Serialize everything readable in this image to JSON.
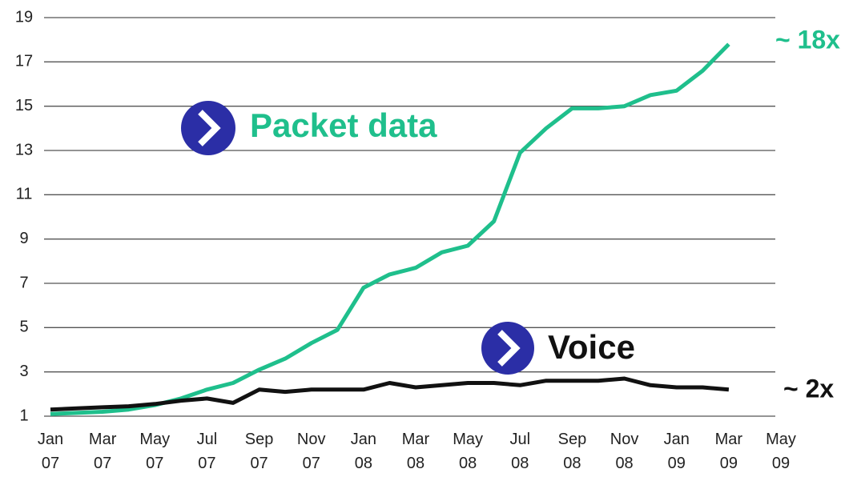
{
  "chart_data": {
    "type": "line",
    "x": [
      "2007-01",
      "2007-02",
      "2007-03",
      "2007-04",
      "2007-05",
      "2007-06",
      "2007-07",
      "2007-08",
      "2007-09",
      "2007-10",
      "2007-11",
      "2007-12",
      "2008-01",
      "2008-02",
      "2008-03",
      "2008-04",
      "2008-05",
      "2008-06",
      "2008-07",
      "2008-08",
      "2008-09",
      "2008-10",
      "2008-11",
      "2008-12",
      "2009-01",
      "2009-02",
      "2009-03"
    ],
    "series": [
      {
        "name": "Packet data",
        "color": "#1fbf8c",
        "values": [
          1.1,
          1.15,
          1.2,
          1.3,
          1.5,
          1.8,
          2.2,
          2.5,
          3.1,
          3.6,
          4.3,
          4.9,
          6.8,
          7.4,
          7.7,
          8.4,
          8.7,
          9.8,
          12.9,
          14.0,
          14.9,
          14.9,
          15.0,
          15.5,
          15.7,
          16.6,
          17.8
        ]
      },
      {
        "name": "Voice",
        "color": "#111111",
        "values": [
          1.3,
          1.35,
          1.4,
          1.45,
          1.55,
          1.7,
          1.8,
          1.6,
          2.2,
          2.1,
          2.2,
          2.2,
          2.2,
          2.5,
          2.3,
          2.4,
          2.5,
          2.5,
          2.4,
          2.6,
          2.6,
          2.6,
          2.7,
          2.4,
          2.3,
          2.3,
          2.2
        ]
      }
    ],
    "annotations": [
      "~ 18x",
      "~ 2x"
    ],
    "xlim": [
      "2007-01",
      "2009-05"
    ],
    "xticks": [
      {
        "value": "2007-01",
        "label": "Jan 07"
      },
      {
        "value": "2007-03",
        "label": "Mar 07"
      },
      {
        "value": "2007-05",
        "label": "May 07"
      },
      {
        "value": "2007-07",
        "label": "Jul 07"
      },
      {
        "value": "2007-09",
        "label": "Sep 07"
      },
      {
        "value": "2007-11",
        "label": "Nov 07"
      },
      {
        "value": "2008-01",
        "label": "Jan 08"
      },
      {
        "value": "2008-03",
        "label": "Mar 08"
      },
      {
        "value": "2008-05",
        "label": "May 08"
      },
      {
        "value": "2008-07",
        "label": "Jul 08"
      },
      {
        "value": "2008-09",
        "label": "Sep 08"
      },
      {
        "value": "2008-11",
        "label": "Nov 08"
      },
      {
        "value": "2009-01",
        "label": "Jan 09"
      },
      {
        "value": "2009-03",
        "label": "Mar 09"
      },
      {
        "value": "2009-05",
        "label": "May 09"
      }
    ],
    "ylim": [
      1,
      19
    ],
    "yticks": [
      1,
      3,
      5,
      7,
      9,
      11,
      13,
      15,
      17,
      19
    ],
    "grid": true
  }
}
